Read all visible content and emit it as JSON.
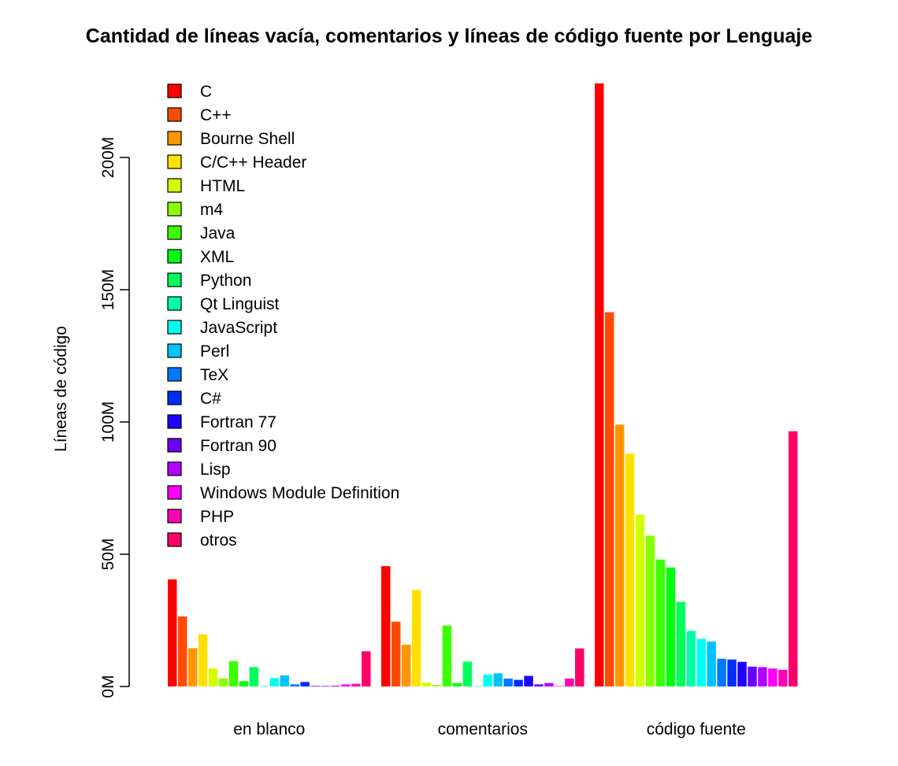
{
  "chart_data": {
    "type": "bar",
    "title": "Cantidad de líneas vacía, comentarios y líneas de código fuente por Lenguaje",
    "xlabel": "",
    "ylabel": "Líneas de código",
    "ylim": [
      0,
      230000000
    ],
    "yticks": [
      0,
      50000000,
      100000000,
      150000000,
      200000000
    ],
    "ytick_labels": [
      "0M",
      "50M",
      "100M",
      "150M",
      "200M"
    ],
    "grid": false,
    "legend_position": "top-left",
    "categories": [
      "en blanco",
      "comentarios",
      "código fuente"
    ],
    "series": [
      {
        "name": "C",
        "color": "#FF0000",
        "values": [
          40500000,
          45500000,
          228000000
        ]
      },
      {
        "name": "C++",
        "color": "#FF4B00",
        "values": [
          26500000,
          24500000,
          141500000
        ]
      },
      {
        "name": "Bourne Shell",
        "color": "#FF9600",
        "values": [
          14500000,
          15800000,
          99000000
        ]
      },
      {
        "name": "C/C++ Header",
        "color": "#FFE100",
        "values": [
          19700000,
          36500000,
          88000000
        ]
      },
      {
        "name": "HTML",
        "color": "#D2FF00",
        "values": [
          6800000,
          1500000,
          65000000
        ]
      },
      {
        "name": "m4",
        "color": "#87FF00",
        "values": [
          3000000,
          500000,
          57000000
        ]
      },
      {
        "name": "Java",
        "color": "#3CFF00",
        "values": [
          9600000,
          23000000,
          48000000
        ]
      },
      {
        "name": "XML",
        "color": "#00FF0F",
        "values": [
          2000000,
          1300000,
          45000000
        ]
      },
      {
        "name": "Python",
        "color": "#00FF5A",
        "values": [
          7300000,
          9400000,
          32000000
        ]
      },
      {
        "name": "Qt Linguist",
        "color": "#00FFA5",
        "values": [
          200000,
          200000,
          21000000
        ]
      },
      {
        "name": "JavaScript",
        "color": "#00FFF0",
        "values": [
          3200000,
          4500000,
          18000000
        ]
      },
      {
        "name": "Perl",
        "color": "#00C3FF",
        "values": [
          4200000,
          5000000,
          17000000
        ]
      },
      {
        "name": "TeX",
        "color": "#0078FF",
        "values": [
          800000,
          3000000,
          10500000
        ]
      },
      {
        "name": "C#",
        "color": "#002DFF",
        "values": [
          1700000,
          2500000,
          10200000
        ]
      },
      {
        "name": "Fortran 77",
        "color": "#1E00FF",
        "values": [
          200000,
          4000000,
          9300000
        ]
      },
      {
        "name": "Fortran 90",
        "color": "#6900FF",
        "values": [
          200000,
          800000,
          7500000
        ]
      },
      {
        "name": "Lisp",
        "color": "#B400FF",
        "values": [
          300000,
          1300000,
          7300000
        ]
      },
      {
        "name": "Windows Module Definition",
        "color": "#FF00FF",
        "values": [
          800000,
          200000,
          6800000
        ]
      },
      {
        "name": "PHP",
        "color": "#FF00B4",
        "values": [
          1000000,
          3000000,
          6300000
        ]
      },
      {
        "name": "otros",
        "color": "#FF0069",
        "values": [
          13300000,
          14400000,
          96500000
        ]
      }
    ]
  }
}
